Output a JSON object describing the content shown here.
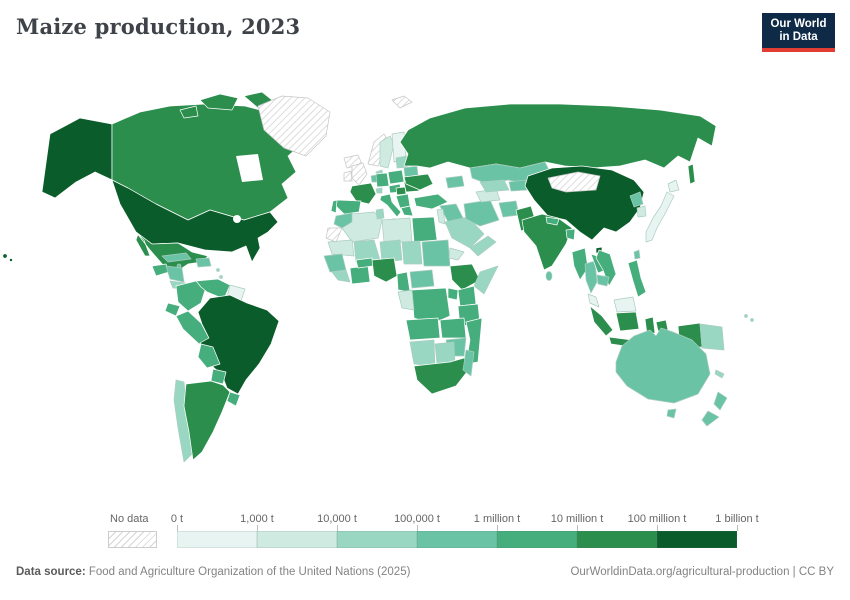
{
  "header": {
    "title": "Maize production, 2023",
    "logo_line1": "Our World",
    "logo_line2": "in Data",
    "logo_bg": "#0e2a47",
    "logo_accent": "#e23d33"
  },
  "chart_data": {
    "type": "heatmap",
    "subtype": "world-choropleth",
    "title": "Maize production, 2023",
    "unit": "tonnes",
    "scale": "log",
    "legend_tick_labels": [
      "0 t",
      "1,000 t",
      "10,000 t",
      "100,000 t",
      "1 million t",
      "10 million t",
      "100 million t",
      "1 billion t"
    ],
    "bin_colors": [
      "#e8f4f1",
      "#cfeae0",
      "#9ad7c3",
      "#6ac3a5",
      "#46ad7c",
      "#2b8e4d",
      "#0b5c2b"
    ],
    "no_data_label": "No data",
    "no_data_hatch_color": "#d4d4d4",
    "ocean_color": "#ffffff",
    "regions": {
      "alaska": 6,
      "canada": 5,
      "arctic-islands": 5,
      "greenland": "no_data",
      "usa": 6,
      "hawaii": 6,
      "mexico": 5,
      "guatemala": 4,
      "honduras-nicaragua": 3,
      "costa-rica-panama": 2,
      "cuba": 3,
      "hispaniola": 3,
      "jamaica": 3,
      "lesser-antilles": 2,
      "colombia": 4,
      "venezuela": 4,
      "guyanas": 0,
      "ecuador": 4,
      "peru": 4,
      "brazil": 6,
      "bolivia": 4,
      "paraguay": 4,
      "chile": 2,
      "argentina": 5,
      "uruguay": 4,
      "iceland": "no_data",
      "uk": "no_data",
      "ireland": "no_data",
      "norway": "no_data",
      "svalbard": "no_data",
      "sweden": 1,
      "finland": 0,
      "denmark": 2,
      "baltics": 2,
      "belarus": 3,
      "poland": 4,
      "germany": 4,
      "benelux": 3,
      "france": 5,
      "spain": 4,
      "portugal": 4,
      "switzerland": 2,
      "czech-austria": 4,
      "italy": 4,
      "hungary": 5,
      "balkans": 4,
      "romania": 5,
      "greece": 4,
      "ukraine": 5,
      "russia": 5,
      "sakhalin": 5,
      "kazakhstan": 3,
      "caucasus": 3,
      "turkey": 4,
      "syria-iraq": 3,
      "israel-jordan": 1,
      "saudi-arabia": 2,
      "arabian-south": 2,
      "iran": 3,
      "turkmenistan": 1,
      "uzbekistan": 2,
      "kyrgyz-tajik": 3,
      "afghanistan": 3,
      "pakistan": 5,
      "india": 5,
      "nepal": 4,
      "bangladesh": 4,
      "sri-lanka": 3,
      "china": 6,
      "mongolia": "no_data",
      "north-korea": 3,
      "south-korea": 1,
      "japan": 0,
      "taiwan": 3,
      "myanmar": 4,
      "thailand": 3,
      "laos": 4,
      "vietnam": 4,
      "cambodia": 3,
      "malaysia": 0,
      "malaysia-borneo": 0,
      "indonesia": 5,
      "papua-new-guinea": 2,
      "philippines": 4,
      "morocco": 3,
      "western-sahara": "no_data",
      "algeria": 1,
      "tunisia": 2,
      "libya": 1,
      "egypt": 4,
      "mauritania": 1,
      "mali": 2,
      "niger": 2,
      "chad": 2,
      "sudan": 3,
      "eritrea": 1,
      "senegal-guinea": 3,
      "sierra-liberia": 2,
      "ivory-ghana": 4,
      "burkina-faso": 4,
      "nigeria": 5,
      "cameroon": 4,
      "central-african-rep": 3,
      "ethiopia": 5,
      "somalia": 2,
      "kenya": 4,
      "uganda": 4,
      "dr-congo": 4,
      "gabon-congo": 1,
      "tanzania": 4,
      "angola": 4,
      "zambia": 4,
      "mozambique": 4,
      "zimbabwe": 3,
      "namibia": 2,
      "botswana": 2,
      "south-africa": 5,
      "madagascar": 3,
      "australia": 3,
      "tasmania": 3,
      "new-zealand": 3,
      "fiji": 2,
      "new-caledonia": 2
    }
  },
  "footer": {
    "source_label": "Data source:",
    "source_text": " Food and Agriculture Organization of the United Nations (2025)",
    "right_text": "OurWorldinData.org/agricultural-production | CC BY"
  }
}
